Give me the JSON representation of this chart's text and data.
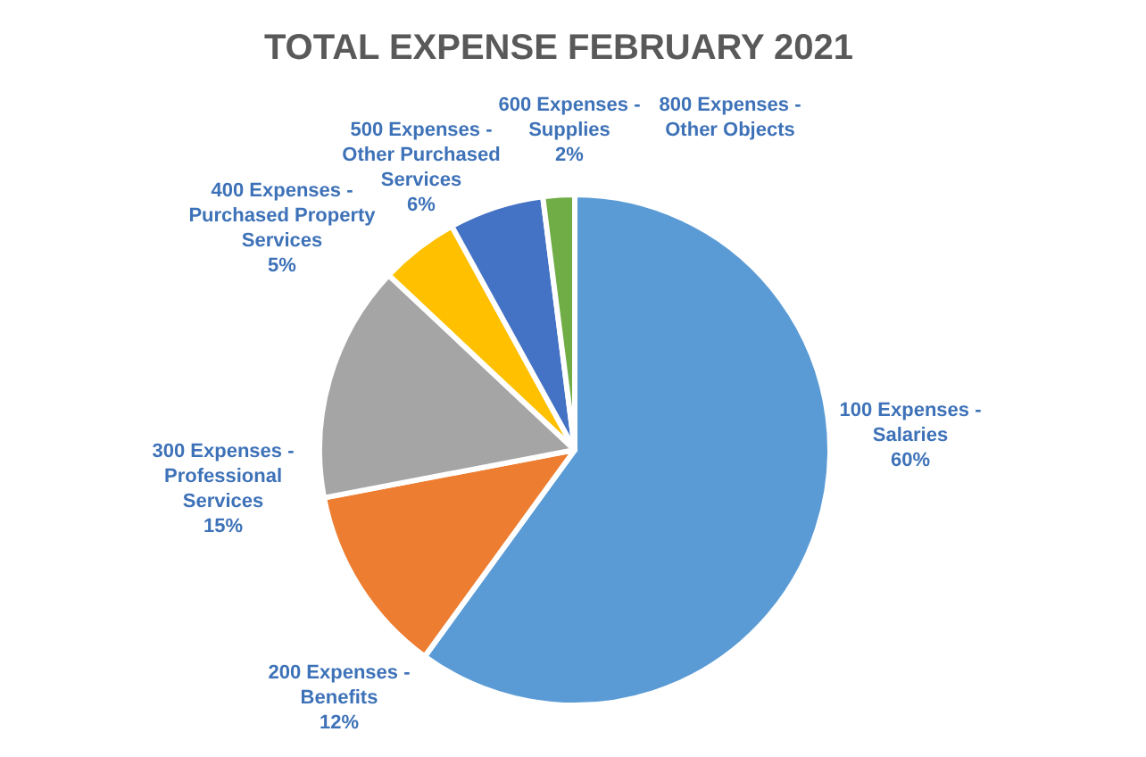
{
  "chart_data": {
    "type": "pie",
    "title": "TOTAL EXPENSE FEBRUARY 2021",
    "categories": [
      "100 Expenses - Salaries",
      "200 Expenses - Benefits",
      "300 Expenses - Professional Services",
      "400 Expenses - Purchased Property Services",
      "500 Expenses - Other Purchased Services",
      "600 Expenses - Supplies",
      "800 Expenses - Other Objects"
    ],
    "values": [
      60,
      12,
      15,
      5,
      6,
      2,
      0
    ],
    "value_labels": [
      "60%",
      "12%",
      "15%",
      "5%",
      "6%",
      "2%",
      null
    ],
    "colors": [
      "#5b9bd5",
      "#ed7d31",
      "#a5a5a5",
      "#ffc000",
      "#4472c4",
      "#70ad47",
      "#264478"
    ]
  }
}
